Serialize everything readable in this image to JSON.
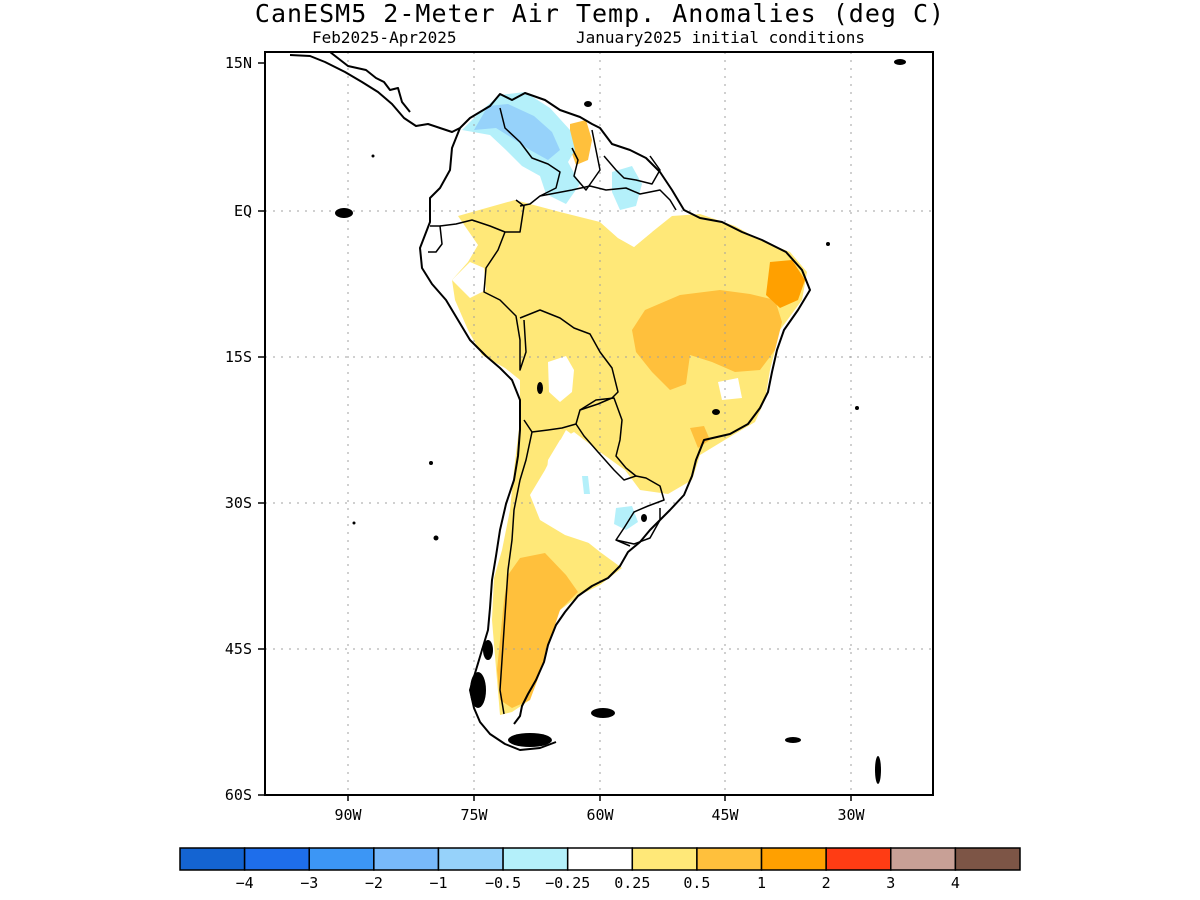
{
  "title": "CanESM5 2-Meter Air Temp. Anomalies (deg C)",
  "subtitle_left": "Feb2025-Apr2025",
  "subtitle_right": "January2025 initial conditions",
  "lat_labels": [
    "15N",
    "EQ",
    "15S",
    "30S",
    "45S",
    "60S"
  ],
  "lon_labels": [
    "90W",
    "75W",
    "60W",
    "45W",
    "30W"
  ],
  "colorbar": {
    "colors": [
      "#1464d2",
      "#1e6eeb",
      "#3c96f5",
      "#78b9fa",
      "#96d2fa",
      "#b4f0fa",
      "#ffffff",
      "#ffe878",
      "#ffc03c",
      "#ffa000",
      "#ff3c14",
      "#c8a096",
      "#7d5546"
    ],
    "labels": [
      "-4",
      "-3",
      "-2",
      "-1",
      "-0.5",
      "-0.25",
      "0.25",
      "0.5",
      "1",
      "2",
      "3",
      "4"
    ]
  },
  "anomaly_colors": {
    "light_blue": "#b4f0fa",
    "medium_blue": "#96d2fa",
    "light_yellow": "#ffe878",
    "light_orange": "#ffc03c",
    "orange": "#ffa000"
  }
}
